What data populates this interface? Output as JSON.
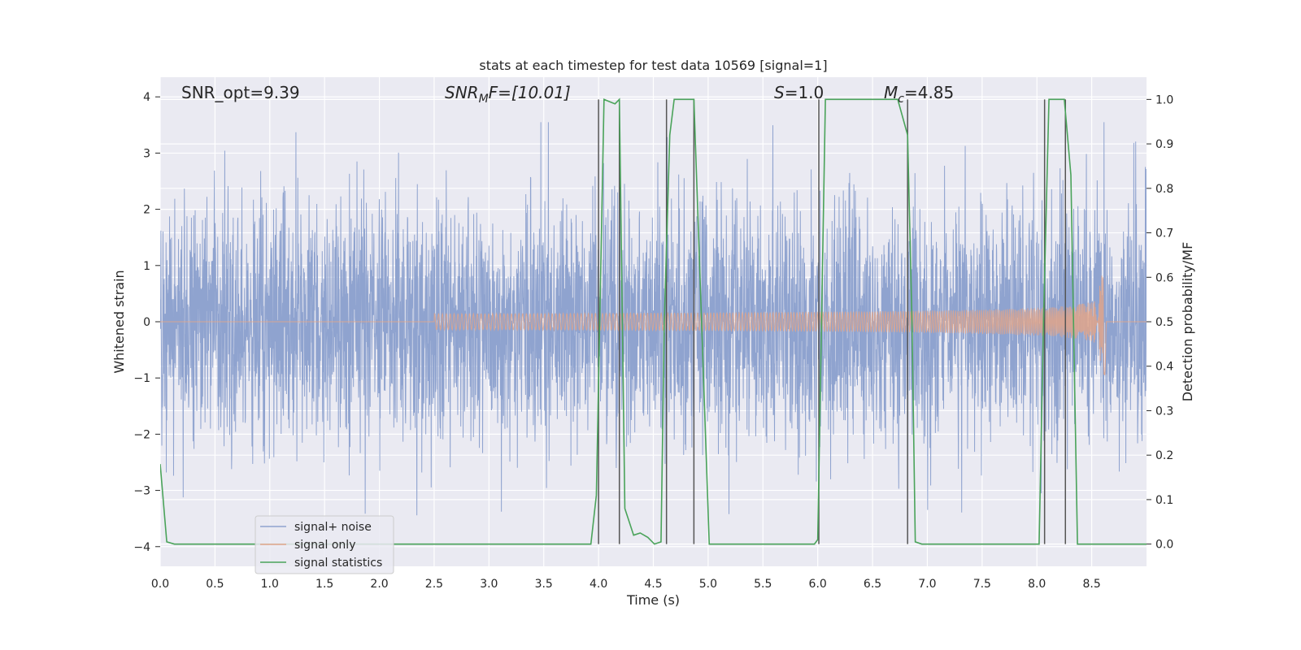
{
  "chart_data": {
    "type": "line",
    "title": "stats at each timestep for test data 10569 [signal=1]",
    "xlabel": "Time (s)",
    "ylabel_left": "Whitened strain",
    "ylabel_right": "Detection probability/MF",
    "xlim": [
      0.0,
      9.0
    ],
    "ylim_left": [
      -4.35,
      4.35
    ],
    "ylim_right": [
      -0.05,
      1.05
    ],
    "xticks": [
      "0.0",
      "0.5",
      "1.0",
      "1.5",
      "2.0",
      "2.5",
      "3.0",
      "3.5",
      "4.0",
      "4.5",
      "5.0",
      "5.5",
      "6.0",
      "6.5",
      "7.0",
      "7.5",
      "8.0",
      "8.5"
    ],
    "yticks_left": [
      "−4",
      "−3",
      "−2",
      "−1",
      "0",
      "1",
      "2",
      "3",
      "4"
    ],
    "yticks_right": [
      "0.0",
      "0.1",
      "0.2",
      "0.3",
      "0.4",
      "0.5",
      "0.6",
      "0.7",
      "0.8",
      "0.9",
      "1.0"
    ],
    "grid": true,
    "legend_position": "lower-left",
    "annotations": {
      "snr_opt": "SNR_opt=9.39",
      "snr_mf_prefix": "SNR",
      "snr_mf_sub": "M",
      "snr_mf_suffix": "F=[10.01]",
      "s_var": "S",
      "s_val": "=1.0",
      "mc_var": "M",
      "mc_sub": "c",
      "mc_val": "=4.85"
    },
    "series": [
      {
        "name": "signal+ noise",
        "color": "#8fa3cf",
        "description_values": "noise-dominated whitened strain, roughly within ±2.5 with spikes to ±3.5",
        "envelope_abs_max": 3.55
      },
      {
        "name": "signal only",
        "color": "#e0a58a",
        "chirp_start_s": 2.5,
        "merger_s": 8.63,
        "amplitude_start": 0.02,
        "amplitude_at_8s": 0.25,
        "amplitude_peak": 0.95
      },
      {
        "name": "signal statistics",
        "color": "#4aa35a",
        "axis": "right",
        "x": [
          0.0,
          0.06,
          0.13,
          3.93,
          3.98,
          4.05,
          4.15,
          4.19,
          4.24,
          4.32,
          4.38,
          4.45,
          4.51,
          4.57,
          4.6,
          4.65,
          4.69,
          4.87,
          5.01,
          5.97,
          6.0,
          6.07,
          6.73,
          6.82,
          6.86,
          6.89,
          6.95,
          8.02,
          8.06,
          8.11,
          8.25,
          8.31,
          8.37,
          9.0
        ],
        "y": [
          0.18,
          0.005,
          0.0,
          0.0,
          0.11,
          1.0,
          0.99,
          1.0,
          0.08,
          0.02,
          0.025,
          0.015,
          0.0,
          0.005,
          0.5,
          0.92,
          1.0,
          1.0,
          0.0,
          0.0,
          0.01,
          1.0,
          1.0,
          0.92,
          0.5,
          0.005,
          0.0,
          0.0,
          0.5,
          1.0,
          1.0,
          0.83,
          0.0,
          0.0
        ]
      }
    ],
    "vertical_markers_s": [
      4.0,
      4.19,
      4.62,
      4.87,
      6.01,
      6.82,
      8.07,
      8.26
    ],
    "vertical_marker_color": "#555555"
  }
}
